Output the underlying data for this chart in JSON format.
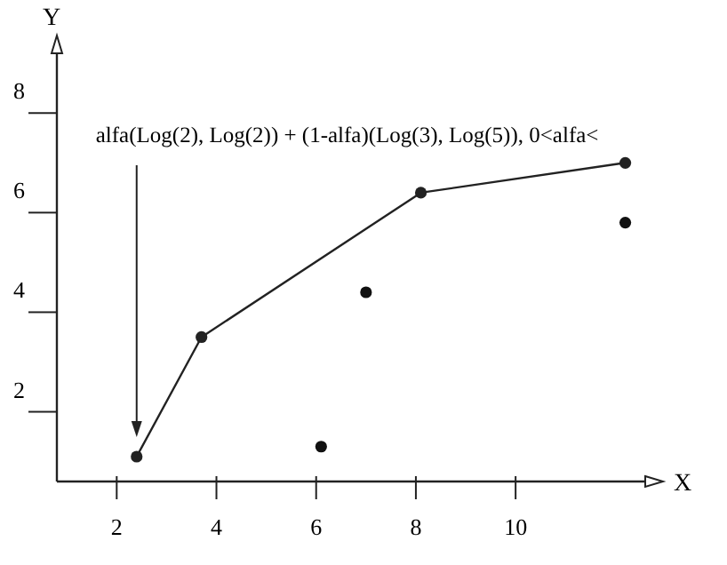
{
  "chart_data": {
    "type": "scatter",
    "xlabel": "X",
    "ylabel": "Y",
    "xlim": [
      0.8,
      12.6
    ],
    "ylim": [
      0.6,
      9.2
    ],
    "xticks": [
      2,
      4,
      6,
      8,
      10
    ],
    "yticks": [
      2,
      4,
      6,
      8
    ],
    "grid": false,
    "marker": "circle",
    "line_style": "solid",
    "series": [
      {
        "type": "line",
        "color": "#222222",
        "x": [
          2.4,
          3.7,
          8.1,
          12.2
        ],
        "values": [
          1.1,
          3.5,
          6.4,
          7.0
        ]
      },
      {
        "type": "scatter",
        "color": "#111111",
        "x": [
          6.1,
          7.0,
          12.2
        ],
        "values": [
          1.3,
          4.4,
          5.8
        ]
      }
    ],
    "annotations": [
      "alfa(Log(2), Log(2)) + (1-alfa)(Log(3), Log(5)), 0<alfa<"
    ]
  }
}
